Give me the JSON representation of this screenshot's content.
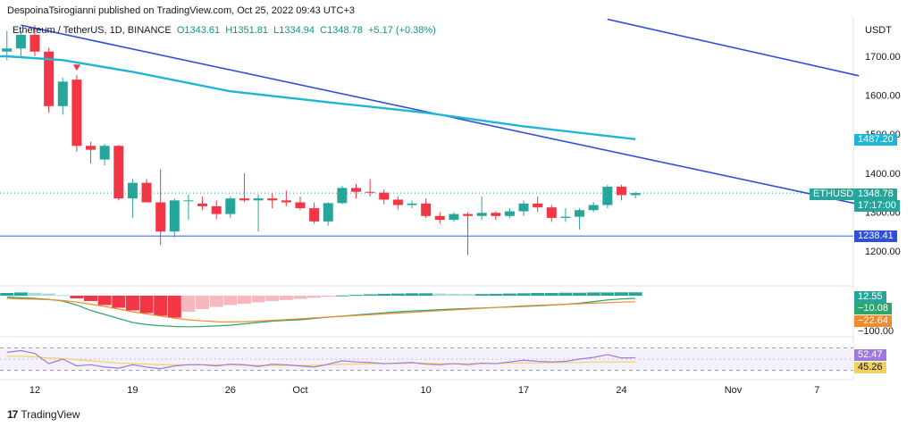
{
  "header": {
    "published": "DespoinaTsirogianni published on TradingView.com, Oct 25, 2022 09:43 UTC+3",
    "symbol_line": "Ethereum / TetherUS, 1D, BINANCE",
    "open": "O1343.61",
    "high": "H1351.81",
    "low": "L1334.94",
    "close": "C1348.78",
    "change": "+5.17 (+0.38%)"
  },
  "brand": {
    "logo": "17",
    "name": "TradingView"
  },
  "price_axis": {
    "unit": "USDT"
  },
  "tags": {
    "ethusdt_label": "ETHUSDT",
    "last_price": "1348.78",
    "countdown": "17:17:00",
    "ma_value": "1487.20",
    "support": "1238.41",
    "macd_hist": "12.55",
    "macd_line": "−10.08",
    "macd_signal": "−22.64",
    "macd_tick": "−100.00",
    "rsi": "52.47",
    "rsi_ma": "45.26"
  },
  "colors": {
    "up": "#26a69a",
    "down": "#f23645",
    "ma": "#1fb5d4",
    "trend": "#2f4fd8",
    "support": "#5b7be0",
    "macd": "#2ea56b",
    "signal": "#f08a2b",
    "rsi": "#9c7ad8",
    "rsi_ma": "#f2d15c"
  },
  "chart_data": [
    {
      "type": "candlestick",
      "title": "Ethereum / TetherUS, 1D, BINANCE",
      "ylabel": "USDT",
      "ylim": [
        1150,
        1760
      ],
      "y_ticks": [
        1200,
        1300,
        1400,
        1500,
        1600,
        1700
      ],
      "x_tick_labels": [
        "12",
        "19",
        "26",
        "Oct",
        "10",
        "17",
        "24",
        "Nov",
        "7"
      ],
      "x_tick_dates": [
        "2022-09-12",
        "2022-09-19",
        "2022-09-26",
        "2022-10-01",
        "2022-10-10",
        "2022-10-17",
        "2022-10-24",
        "2022-11-01",
        "2022-11-07"
      ],
      "candles": [
        {
          "date": "2022-09-10",
          "o": 1712,
          "h": 1765,
          "l": 1690,
          "c": 1720
        },
        {
          "date": "2022-09-11",
          "o": 1720,
          "h": 1765,
          "l": 1700,
          "c": 1755
        },
        {
          "date": "2022-09-12",
          "o": 1755,
          "h": 1780,
          "l": 1700,
          "c": 1712
        },
        {
          "date": "2022-09-13",
          "o": 1712,
          "h": 1722,
          "l": 1555,
          "c": 1572
        },
        {
          "date": "2022-09-14",
          "o": 1572,
          "h": 1645,
          "l": 1550,
          "c": 1635
        },
        {
          "date": "2022-09-15",
          "o": 1640,
          "h": 1652,
          "l": 1455,
          "c": 1470
        },
        {
          "date": "2022-09-16",
          "o": 1470,
          "h": 1480,
          "l": 1425,
          "c": 1460
        },
        {
          "date": "2022-09-17",
          "o": 1435,
          "h": 1475,
          "l": 1420,
          "c": 1470
        },
        {
          "date": "2022-09-18",
          "o": 1470,
          "h": 1472,
          "l": 1330,
          "c": 1335
        },
        {
          "date": "2022-09-19",
          "o": 1335,
          "h": 1385,
          "l": 1285,
          "c": 1375
        },
        {
          "date": "2022-09-20",
          "o": 1375,
          "h": 1385,
          "l": 1325,
          "c": 1325
        },
        {
          "date": "2022-09-21",
          "o": 1325,
          "h": 1410,
          "l": 1215,
          "c": 1250
        },
        {
          "date": "2022-09-22",
          "o": 1250,
          "h": 1335,
          "l": 1235,
          "c": 1330
        },
        {
          "date": "2022-09-23",
          "o": 1330,
          "h": 1345,
          "l": 1280,
          "c": 1330
        },
        {
          "date": "2022-09-24",
          "o": 1322,
          "h": 1340,
          "l": 1305,
          "c": 1315
        },
        {
          "date": "2022-09-25",
          "o": 1315,
          "h": 1330,
          "l": 1282,
          "c": 1295
        },
        {
          "date": "2022-09-26",
          "o": 1295,
          "h": 1340,
          "l": 1285,
          "c": 1335
        },
        {
          "date": "2022-09-27",
          "o": 1335,
          "h": 1400,
          "l": 1325,
          "c": 1330
        },
        {
          "date": "2022-09-28",
          "o": 1330,
          "h": 1345,
          "l": 1250,
          "c": 1335
        },
        {
          "date": "2022-09-29",
          "o": 1335,
          "h": 1348,
          "l": 1310,
          "c": 1330
        },
        {
          "date": "2022-09-30",
          "o": 1330,
          "h": 1355,
          "l": 1315,
          "c": 1325
        },
        {
          "date": "2022-10-01",
          "o": 1325,
          "h": 1340,
          "l": 1305,
          "c": 1310
        },
        {
          "date": "2022-10-02",
          "o": 1310,
          "h": 1325,
          "l": 1270,
          "c": 1276
        },
        {
          "date": "2022-10-03",
          "o": 1276,
          "h": 1325,
          "l": 1265,
          "c": 1323
        },
        {
          "date": "2022-10-04",
          "o": 1323,
          "h": 1368,
          "l": 1320,
          "c": 1362
        },
        {
          "date": "2022-10-05",
          "o": 1362,
          "h": 1372,
          "l": 1335,
          "c": 1352
        },
        {
          "date": "2022-10-06",
          "o": 1352,
          "h": 1385,
          "l": 1340,
          "c": 1350
        },
        {
          "date": "2022-10-07",
          "o": 1350,
          "h": 1358,
          "l": 1320,
          "c": 1332
        },
        {
          "date": "2022-10-08",
          "o": 1332,
          "h": 1340,
          "l": 1307,
          "c": 1318
        },
        {
          "date": "2022-10-09",
          "o": 1318,
          "h": 1330,
          "l": 1310,
          "c": 1322
        },
        {
          "date": "2022-10-10",
          "o": 1322,
          "h": 1335,
          "l": 1285,
          "c": 1290
        },
        {
          "date": "2022-10-11",
          "o": 1290,
          "h": 1300,
          "l": 1270,
          "c": 1280
        },
        {
          "date": "2022-10-12",
          "o": 1280,
          "h": 1300,
          "l": 1275,
          "c": 1295
        },
        {
          "date": "2022-10-13",
          "o": 1295,
          "h": 1300,
          "l": 1190,
          "c": 1290
        },
        {
          "date": "2022-10-14",
          "o": 1290,
          "h": 1340,
          "l": 1280,
          "c": 1298
        },
        {
          "date": "2022-10-15",
          "o": 1298,
          "h": 1302,
          "l": 1280,
          "c": 1290
        },
        {
          "date": "2022-10-16",
          "o": 1290,
          "h": 1310,
          "l": 1285,
          "c": 1302
        },
        {
          "date": "2022-10-17",
          "o": 1302,
          "h": 1330,
          "l": 1290,
          "c": 1322
        },
        {
          "date": "2022-10-18",
          "o": 1322,
          "h": 1340,
          "l": 1300,
          "c": 1312
        },
        {
          "date": "2022-10-19",
          "o": 1312,
          "h": 1318,
          "l": 1275,
          "c": 1285
        },
        {
          "date": "2022-10-20",
          "o": 1285,
          "h": 1310,
          "l": 1275,
          "c": 1288
        },
        {
          "date": "2022-10-21",
          "o": 1288,
          "h": 1310,
          "l": 1255,
          "c": 1305
        },
        {
          "date": "2022-10-22",
          "o": 1305,
          "h": 1325,
          "l": 1300,
          "c": 1318
        },
        {
          "date": "2022-10-23",
          "o": 1318,
          "h": 1370,
          "l": 1310,
          "c": 1365
        },
        {
          "date": "2022-10-24",
          "o": 1365,
          "h": 1370,
          "l": 1330,
          "c": 1343.61
        },
        {
          "date": "2022-10-25",
          "o": 1343.61,
          "h": 1351.81,
          "l": 1334.94,
          "c": 1348.78
        }
      ],
      "moving_average": [
        {
          "date": "2022-09-10",
          "value": 1700
        },
        {
          "date": "2022-09-14",
          "value": 1690
        },
        {
          "date": "2022-09-19",
          "value": 1660
        },
        {
          "date": "2022-09-26",
          "value": 1610
        },
        {
          "date": "2022-10-03",
          "value": 1582
        },
        {
          "date": "2022-10-10",
          "value": 1555
        },
        {
          "date": "2022-10-17",
          "value": 1520
        },
        {
          "date": "2022-10-25",
          "value": 1487.2
        }
      ],
      "trendlines": [
        {
          "from": {
            "date": "2022-09-11",
            "value": 1780
          },
          "to": {
            "date": "2022-11-10",
            "value": 1320
          }
        },
        {
          "from": {
            "date": "2022-10-23",
            "value": 1795
          },
          "to": {
            "date": "2022-11-10",
            "value": 1650
          }
        }
      ],
      "horizontal_lines": [
        {
          "value": 1238.41
        }
      ],
      "arrow_marker": {
        "date": "2022-09-15",
        "value": 1672
      }
    },
    {
      "type": "bar",
      "title": "MACD",
      "ylim": [
        -120,
        30
      ],
      "histogram_start": "2022-09-10",
      "histogram": [
        10,
        12,
        11,
        8,
        2,
        -10,
        -20,
        -35,
        -45,
        -55,
        -65,
        -75,
        -82,
        -60,
        -50,
        -42,
        -35,
        -30,
        -25,
        -20,
        -16,
        -12,
        -8,
        -4,
        1,
        3,
        5,
        7,
        8,
        9,
        9,
        8,
        7,
        6,
        6,
        7,
        8,
        9,
        10,
        10,
        11,
        11,
        12,
        12,
        12.55,
        12.55
      ],
      "macd_line": [
        -5,
        -8,
        -10,
        -14,
        -20,
        -35,
        -55,
        -70,
        -85,
        -100,
        -108,
        -112,
        -115,
        -116,
        -115,
        -113,
        -110,
        -105,
        -100,
        -95,
        -92,
        -90,
        -85,
        -80,
        -76,
        -72,
        -68,
        -64,
        -60,
        -57,
        -55,
        -52,
        -50,
        -48,
        -46,
        -44,
        -42,
        -40,
        -38,
        -35,
        -32,
        -28,
        -22,
        -16,
        -12,
        -10.08
      ],
      "signal_line": [
        -10,
        -12,
        -13,
        -15,
        -18,
        -24,
        -32,
        -40,
        -50,
        -60,
        -68,
        -76,
        -84,
        -90,
        -94,
        -97,
        -98,
        -97,
        -95,
        -92,
        -89,
        -86,
        -83,
        -80,
        -77,
        -74,
        -71,
        -68,
        -65,
        -62,
        -59,
        -56,
        -53,
        -50,
        -47,
        -44,
        -41,
        -38,
        -36,
        -34,
        -32,
        -30,
        -28,
        -26,
        -24,
        -22.64
      ]
    },
    {
      "type": "line",
      "title": "RSI",
      "ylim": [
        20,
        80
      ],
      "bands": [
        30,
        70
      ],
      "start": "2022-09-10",
      "rsi": [
        62,
        65,
        60,
        42,
        50,
        38,
        40,
        36,
        34,
        40,
        36,
        33,
        38,
        40,
        40,
        38,
        41,
        40,
        37,
        41,
        40,
        38,
        36,
        41,
        47,
        45,
        44,
        42,
        43,
        44,
        41,
        40,
        42,
        40,
        43,
        42,
        45,
        48,
        46,
        45,
        46,
        50,
        53,
        58,
        52,
        52.47
      ],
      "rsi_ma": [
        55,
        55,
        54,
        52,
        51,
        49,
        47,
        45,
        43,
        42,
        41,
        40,
        40,
        40,
        40,
        40,
        40,
        39,
        39,
        39,
        39,
        39,
        39,
        40,
        41,
        41,
        42,
        42,
        42,
        43,
        43,
        42,
        42,
        42,
        42,
        42,
        43,
        43,
        43,
        44,
        44,
        44,
        45,
        45,
        45,
        45.26
      ]
    }
  ]
}
